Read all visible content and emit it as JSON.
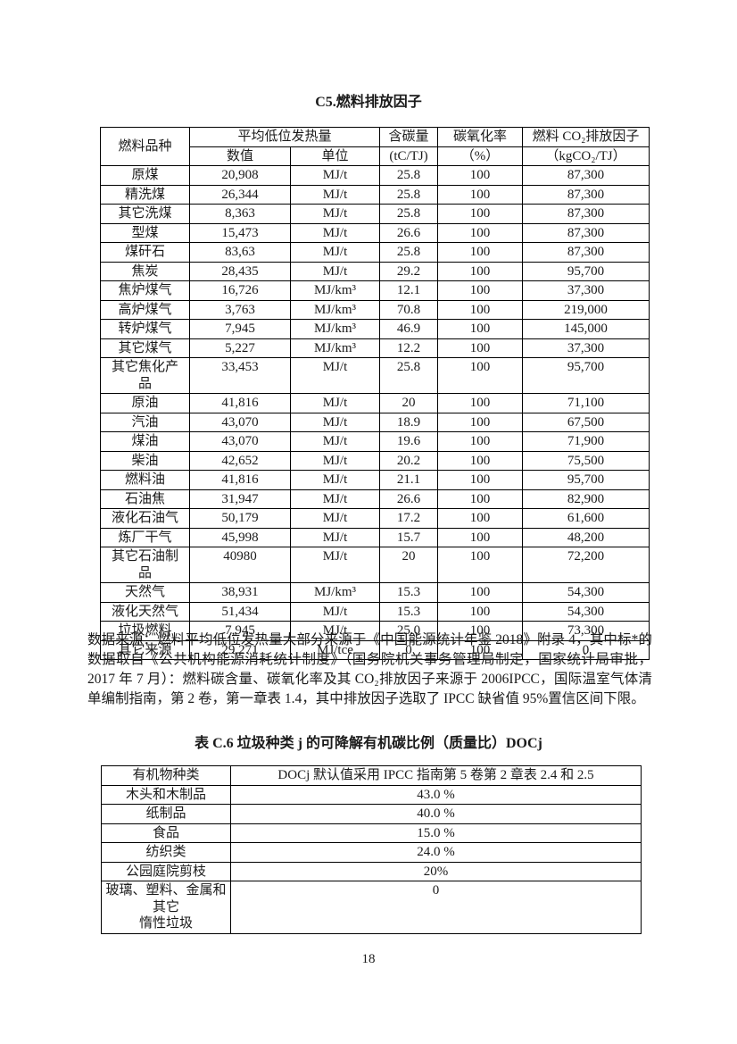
{
  "table1": {
    "title": "C5.燃料排放因子",
    "header": {
      "fuel_type": "燃料品种",
      "avg_heat_value": "平均低位发热量",
      "carbon_content": "含碳量",
      "carbon_oxid_rate": "碳氧化率",
      "co2_factor": "燃料 CO₂排放因子",
      "sub_value": "数值",
      "sub_unit": "单位",
      "sub_carbon_unit": "(tC/TJ)",
      "sub_oxid_unit": "（%）",
      "sub_factor_unit": "（kgCO₂/TJ）"
    },
    "rows": [
      [
        "原煤",
        "20,908",
        "MJ/t",
        "25.8",
        "100",
        "87,300"
      ],
      [
        "精洗煤",
        "26,344",
        "MJ/t",
        "25.8",
        "100",
        "87,300"
      ],
      [
        "其它洗煤",
        "8,363",
        "MJ/t",
        "25.8",
        "100",
        "87,300"
      ],
      [
        "型煤",
        "15,473",
        "MJ/t",
        "26.6",
        "100",
        "87,300"
      ],
      [
        "煤矸石",
        "83,63",
        "MJ/t",
        "25.8",
        "100",
        "87,300"
      ],
      [
        "焦炭",
        "28,435",
        "MJ/t",
        "29.2",
        "100",
        "95,700"
      ],
      [
        "焦炉煤气",
        "16,726",
        "MJ/km³",
        "12.1",
        "100",
        "37,300"
      ],
      [
        "高炉煤气",
        "3,763",
        "MJ/km³",
        "70.8",
        "100",
        "219,000"
      ],
      [
        "转炉煤气",
        "7,945",
        "MJ/km³",
        "46.9",
        "100",
        "145,000"
      ],
      [
        "其它煤气",
        "5,227",
        "MJ/km³",
        "12.2",
        "100",
        "37,300"
      ],
      [
        "其它焦化产\n品",
        "33,453",
        "MJ/t",
        "25.8",
        "100",
        "95,700"
      ],
      [
        "原油",
        "41,816",
        "MJ/t",
        "20",
        "100",
        "71,100"
      ],
      [
        "汽油",
        "43,070",
        "MJ/t",
        "18.9",
        "100",
        "67,500"
      ],
      [
        "煤油",
        "43,070",
        "MJ/t",
        "19.6",
        "100",
        "71,900"
      ],
      [
        "柴油",
        "42,652",
        "MJ/t",
        "20.2",
        "100",
        "75,500"
      ],
      [
        "燃料油",
        "41,816",
        "MJ/t",
        "21.1",
        "100",
        "95,700"
      ],
      [
        "石油焦",
        "31,947",
        "MJ/t",
        "26.6",
        "100",
        "82,900"
      ],
      [
        "液化石油气",
        "50,179",
        "MJ/t",
        "17.2",
        "100",
        "61,600"
      ],
      [
        "炼厂干气",
        "45,998",
        "MJ/t",
        "15.7",
        "100",
        "48,200"
      ],
      [
        "其它石油制\n品",
        "40980",
        "MJ/t",
        "20",
        "100",
        "72,200"
      ],
      [
        "天然气",
        "38,931",
        "MJ/km³",
        "15.3",
        "100",
        "54,300"
      ],
      [
        "液化天然气",
        "51,434",
        "MJ/t",
        "15.3",
        "100",
        "54,300"
      ],
      [
        "垃圾燃料",
        "7,945",
        "MJ/t",
        "25.0",
        "100",
        "73,300"
      ],
      [
        "其它来源",
        "29,271",
        "MJ/tce",
        "0",
        "100",
        "0"
      ]
    ]
  },
  "notes": {
    "source_note": "数据来源：燃料平均低位发热量大部分来源于《中国能源统计年鉴 2018》附录 4，其中标*的数据取自《公共机构能源消耗统计制度》（国务院机关事务管理局制定，国家统计局审批，2017 年 7 月）：燃料碳含量、碳氧化率及其 CO₂排放因子来源于 2006IPCC，国际温室气体清单编制指南，第 2 卷，第一章表 1.4，其中排放因子选取了 IPCC 缺省值 95%置信区间下限。"
  },
  "table2": {
    "title": "表 C.6 垃圾种类 j 的可降解有机碳比例（质量比）DOCj",
    "header": {
      "organic_type": "有机物种类",
      "doc_default": "DOCj 默认值采用 IPCC 指南第 5 卷第 2 章表 2.4 和 2.5"
    },
    "rows": [
      [
        "木头和木制品",
        "43.0 %"
      ],
      [
        "纸制品",
        "40.0 %"
      ],
      [
        "食品",
        "15.0 %"
      ],
      [
        "纺织类",
        "24.0 %"
      ],
      [
        "公园庭院剪枝",
        "20%"
      ],
      [
        "玻璃、塑料、金属和其它\n惰性垃圾",
        "0"
      ]
    ]
  },
  "page": {
    "number": "18"
  }
}
